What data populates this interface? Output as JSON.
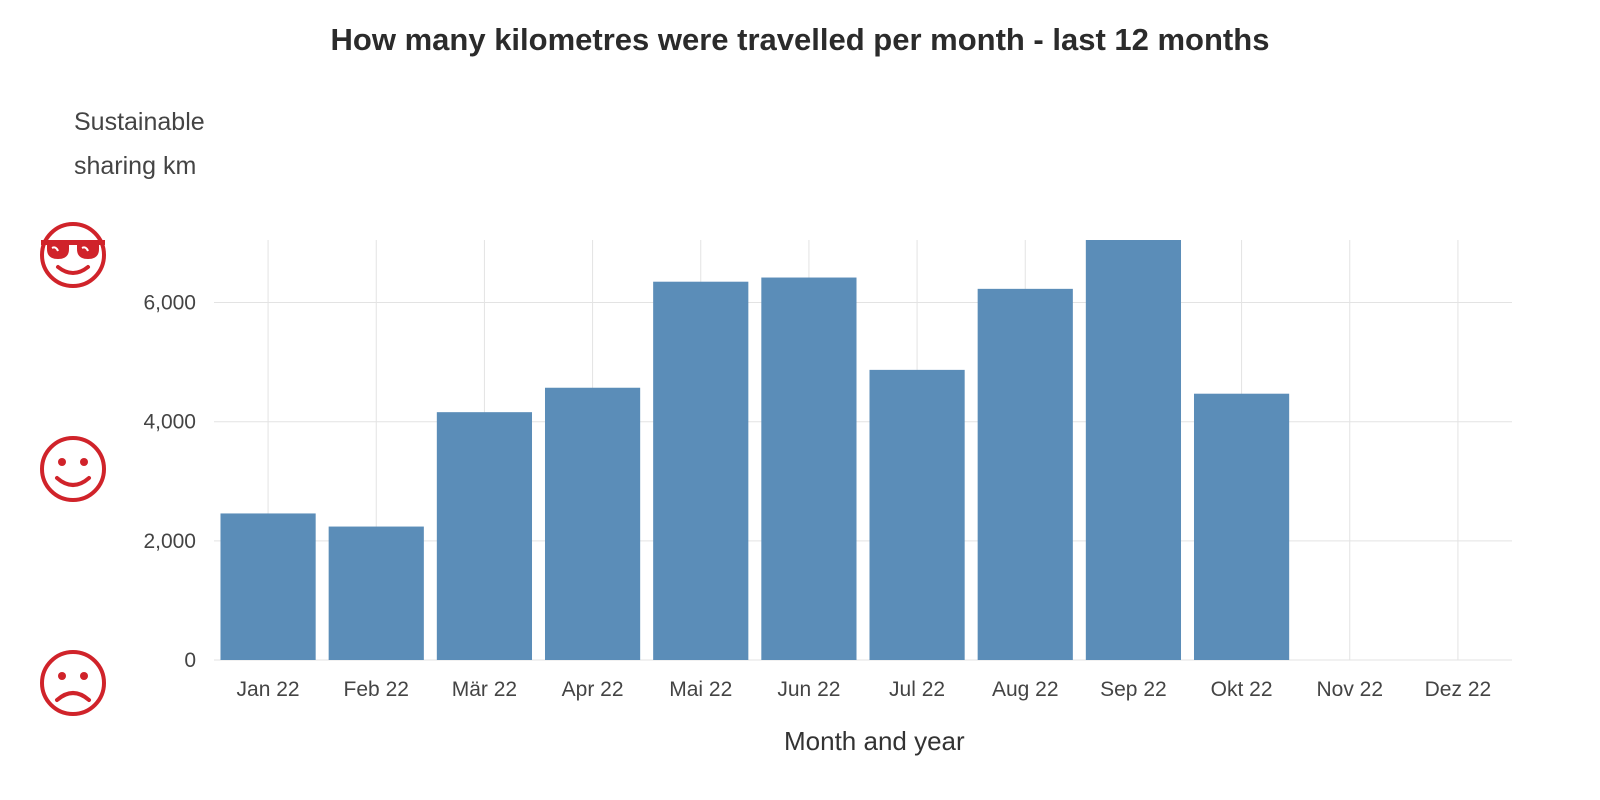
{
  "title": "How many kilometres were travelled per month - last 12 months",
  "icons": [
    "cool-face-icon",
    "smile-face-icon",
    "sad-face-icon"
  ],
  "colors": {
    "bar": "#5b8db8",
    "grid": "#e3e3e3",
    "icon": "#d0232a"
  },
  "chart_data": {
    "type": "bar",
    "title": "How many kilometres were travelled per month - last 12 months",
    "xlabel": "Month and year",
    "ylabel_lines": [
      "Sustainable",
      "sharing km"
    ],
    "categories": [
      "Jan 22",
      "Feb 22",
      "Mär 22",
      "Apr 22",
      "Mai 22",
      "Jun 22",
      "Jul 22",
      "Aug 22",
      "Sep 22",
      "Okt 22",
      "Nov 22",
      "Dez 22"
    ],
    "values": [
      2460,
      2240,
      4160,
      4570,
      6350,
      6420,
      4870,
      6230,
      7050,
      4470,
      null,
      null
    ],
    "yticks": [
      0,
      2000,
      4000,
      6000
    ],
    "ytick_labels": [
      "0",
      "2,000",
      "4,000",
      "6,000"
    ],
    "ylim": [
      0,
      7050
    ],
    "grid": true,
    "legend": "none"
  }
}
